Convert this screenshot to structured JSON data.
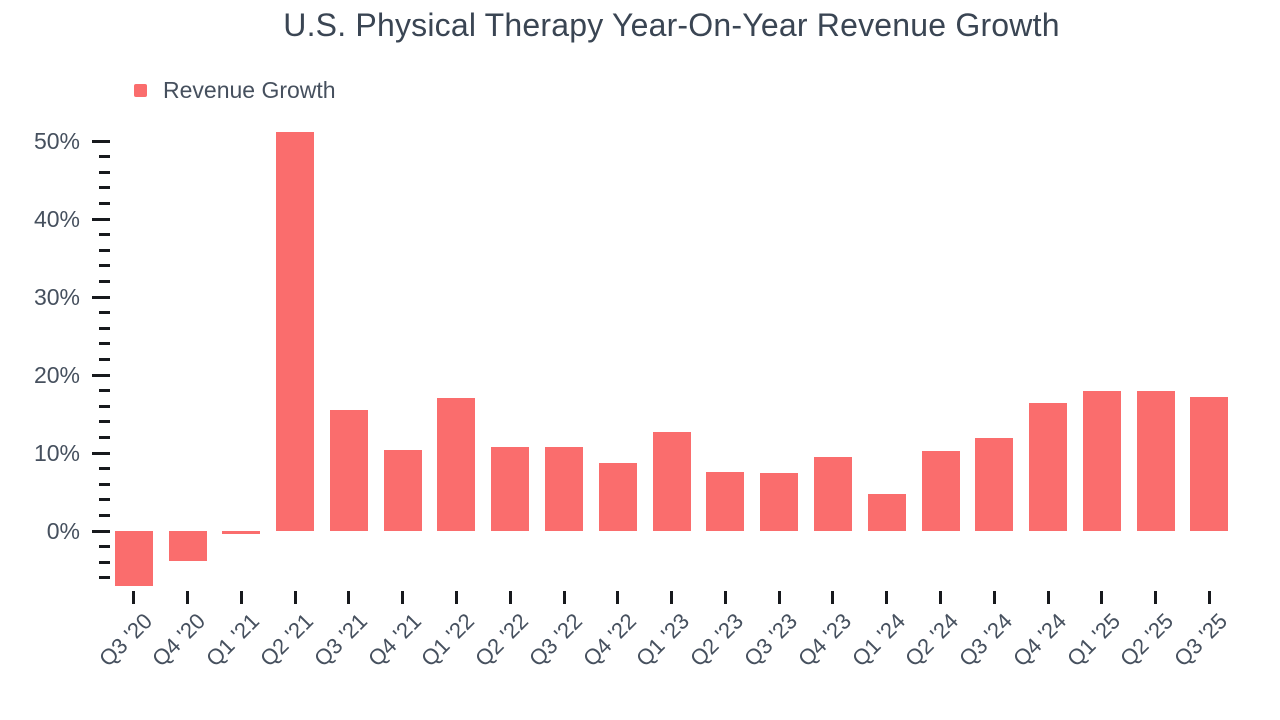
{
  "chart_data": {
    "type": "bar",
    "title": "U.S. Physical Therapy Year-On-Year Revenue Growth",
    "legend": {
      "label": "Revenue Growth",
      "position": "top-left"
    },
    "categories": [
      "Q3 '20",
      "Q4 '20",
      "Q1 '21",
      "Q2 '21",
      "Q3 '21",
      "Q4 '21",
      "Q1 '22",
      "Q2 '22",
      "Q3 '22",
      "Q4 '22",
      "Q1 '23",
      "Q2 '23",
      "Q3 '23",
      "Q4 '23",
      "Q1 '24",
      "Q2 '24",
      "Q3 '24",
      "Q4 '24",
      "Q1 '25",
      "Q2 '25",
      "Q3 '25"
    ],
    "values": [
      -7.1,
      -3.9,
      -0.4,
      51.1,
      15.5,
      10.4,
      17.1,
      10.8,
      10.8,
      8.7,
      12.7,
      7.6,
      7.5,
      9.5,
      4.7,
      10.2,
      11.9,
      16.4,
      18.0,
      18.0,
      17.2
    ],
    "value_unit": "%",
    "xlabel": "",
    "ylabel": "",
    "y_axis": {
      "min": -6,
      "max": 50,
      "major_step": 10,
      "minor_step": 2,
      "tick_labels": [
        "0%",
        "10%",
        "20%",
        "30%",
        "40%",
        "50%"
      ]
    },
    "ylim": [
      -8,
      52
    ],
    "grid": false,
    "colors": {
      "bar": "#FA6D6D",
      "title_text": "#3A4553",
      "axis_text": "#46505E",
      "tick": "#17191D",
      "background": "#FFFFFF"
    }
  }
}
